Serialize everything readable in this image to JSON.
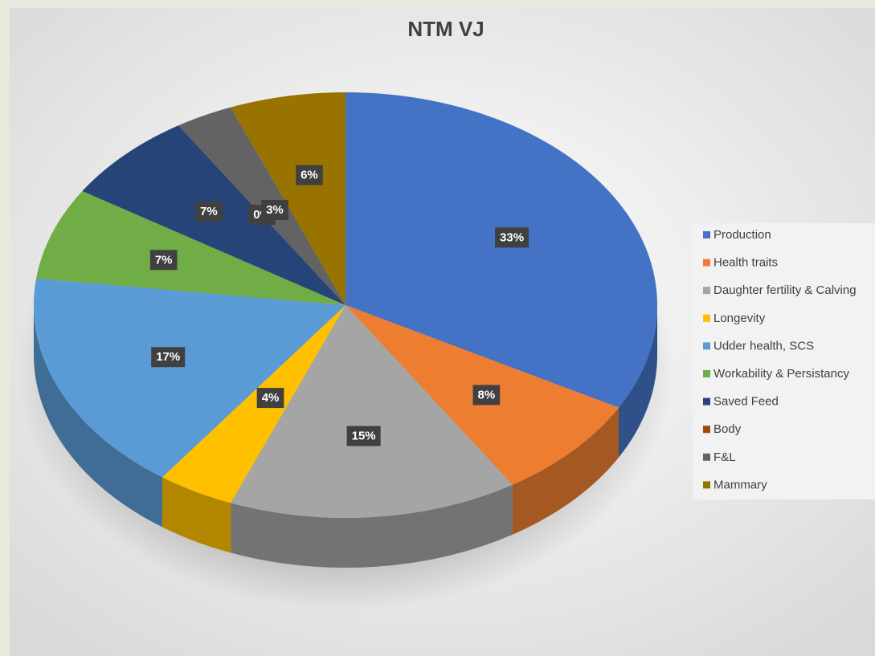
{
  "chart_data": {
    "type": "pie",
    "title": "NTM VJ",
    "categories": [
      "Production",
      "Health traits",
      "Daughter fertility & Calving",
      "Longevity",
      "Udder health, SCS",
      "Workability & Persistancy",
      "Saved Feed",
      "Body",
      "F&L",
      "Mammary"
    ],
    "values": [
      33,
      8,
      15,
      4,
      17,
      7,
      7,
      0,
      3,
      6
    ],
    "value_labels": [
      "33%",
      "8%",
      "15%",
      "4%",
      "17%",
      "7%",
      "7%",
      "0%",
      "3%",
      "6%"
    ],
    "colors": [
      "#4472c4",
      "#ed7d31",
      "#a5a5a5",
      "#ffc000",
      "#5b9bd5",
      "#70ad47",
      "#264478",
      "#9e480e",
      "#636363",
      "#997300"
    ],
    "legend": "right"
  }
}
